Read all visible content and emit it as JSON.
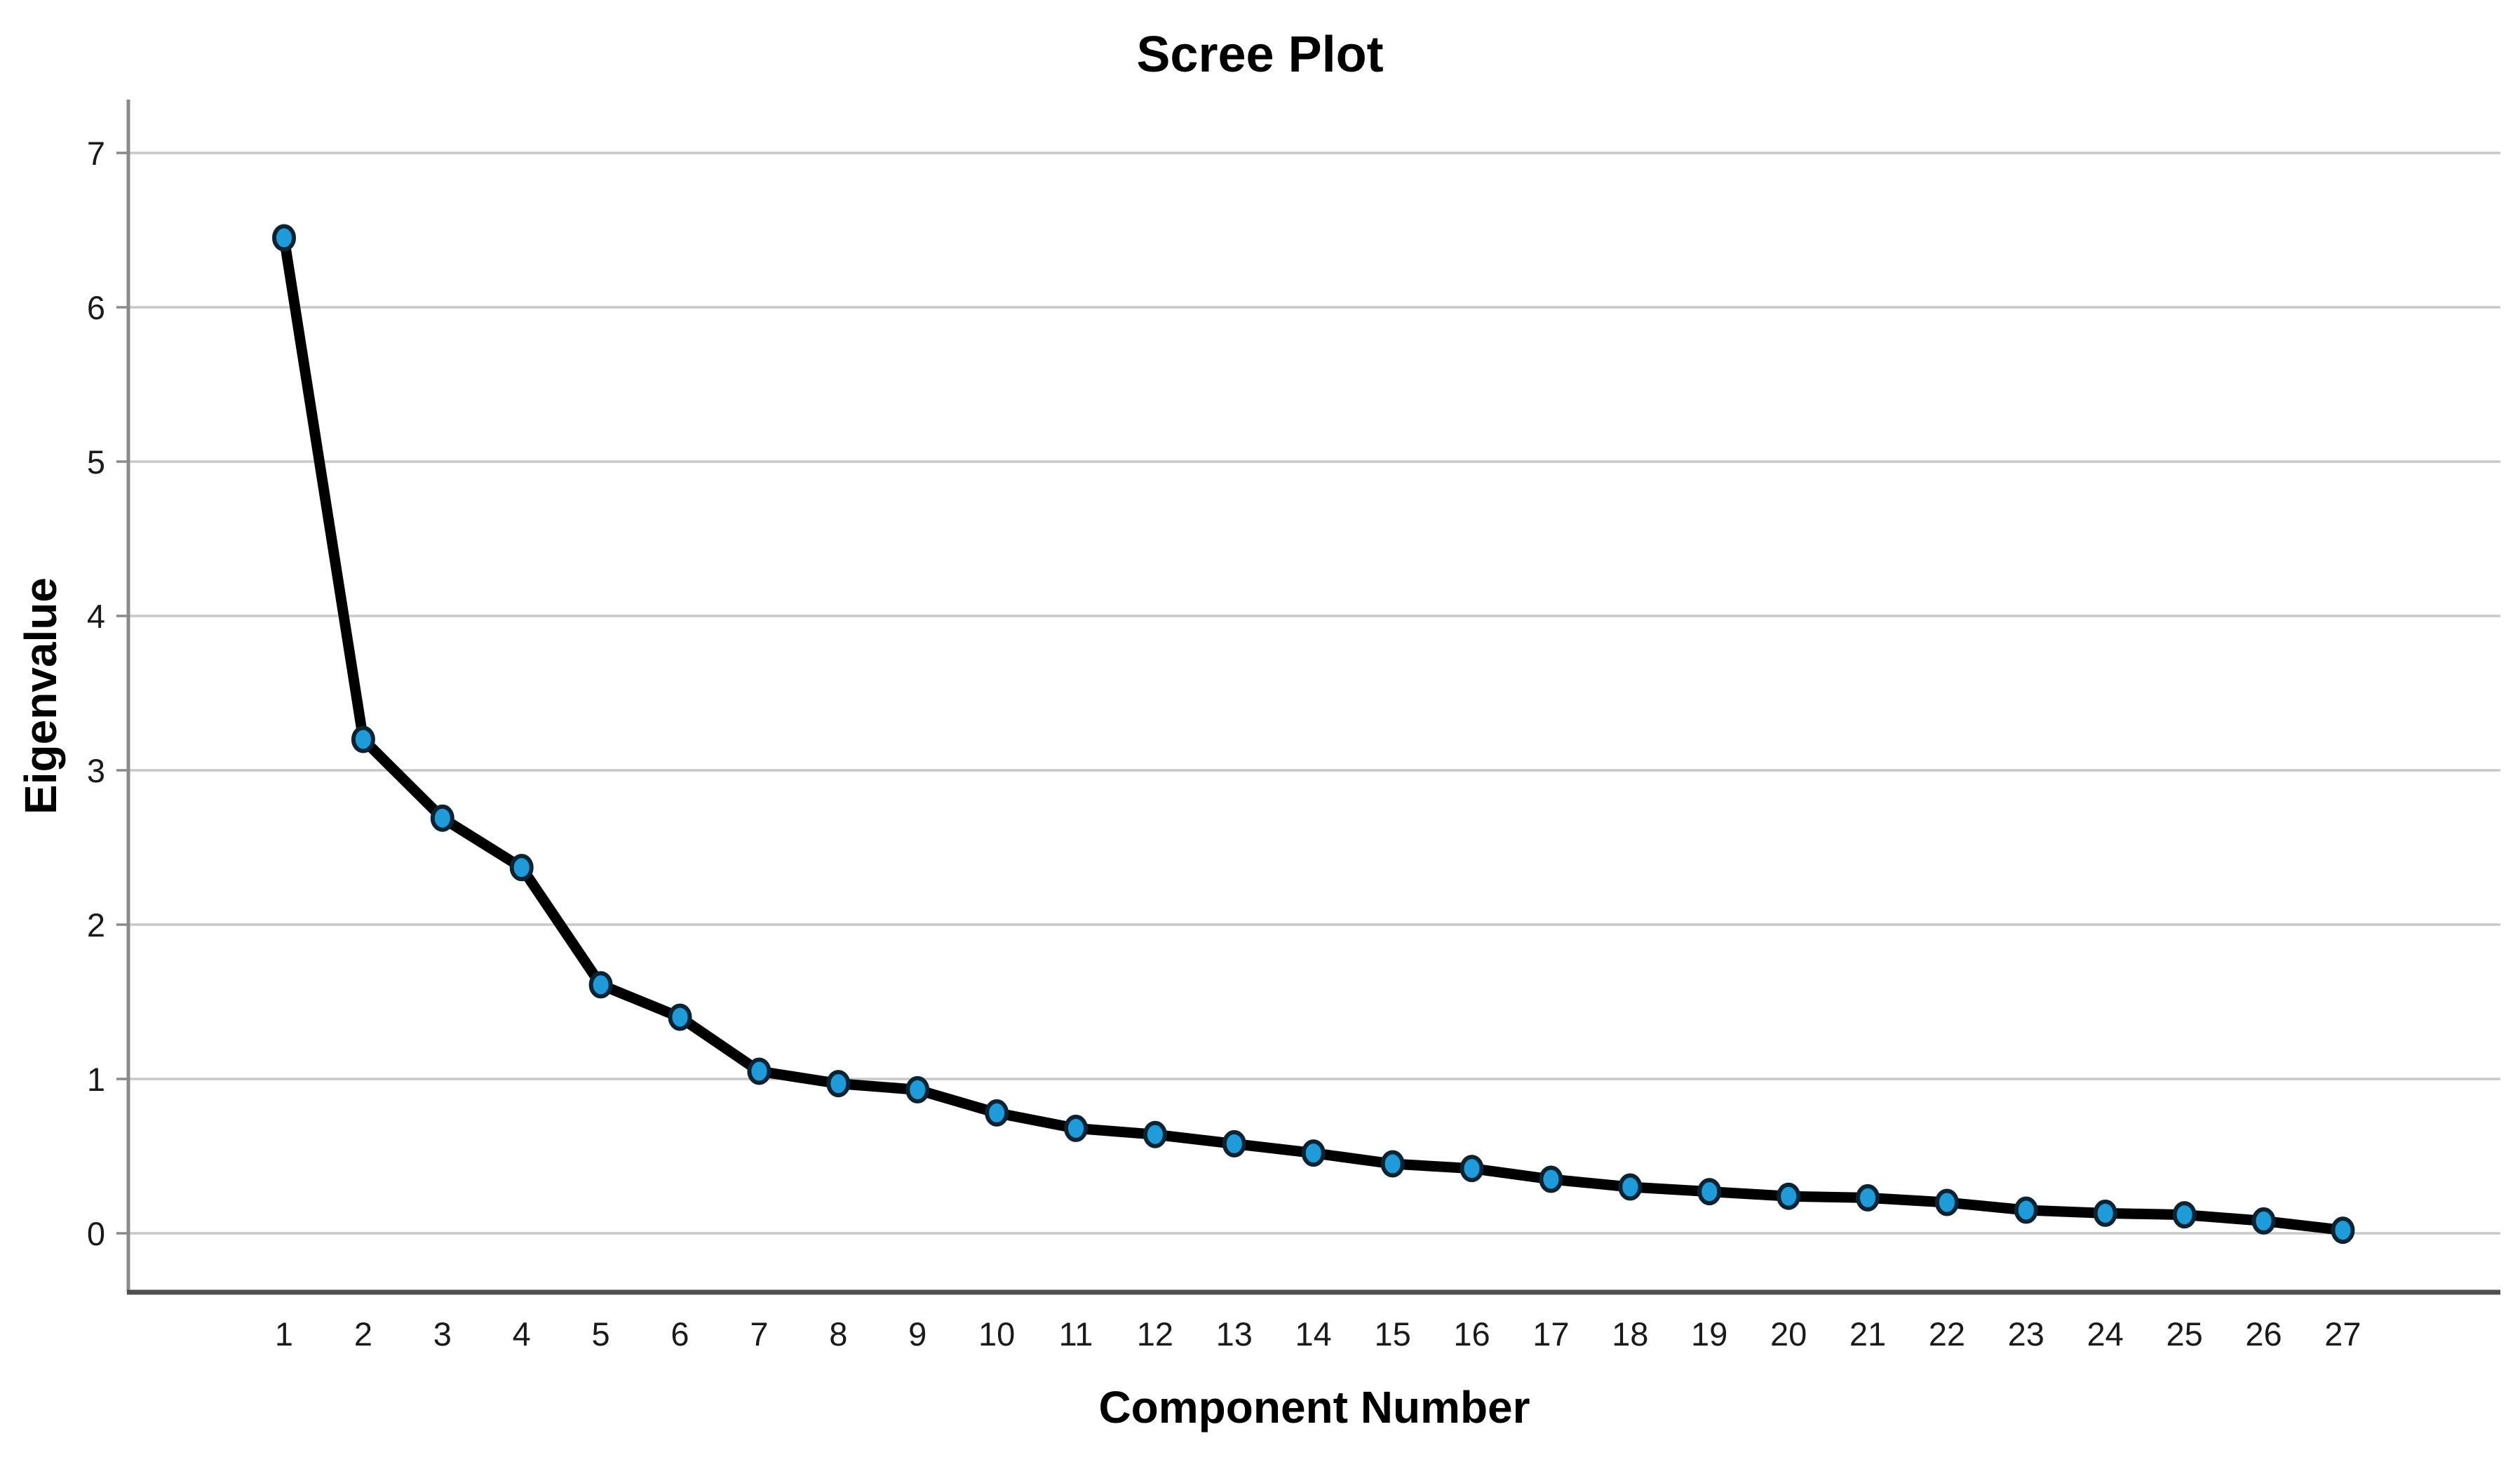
{
  "chart_data": {
    "type": "line",
    "title": "Scree Plot",
    "xlabel": "Component Number",
    "ylabel": "Eigenvalue",
    "series_name": "Eigenvalue",
    "categories": [
      1,
      2,
      3,
      4,
      5,
      6,
      7,
      8,
      9,
      10,
      11,
      12,
      13,
      14,
      15,
      16,
      17,
      18,
      19,
      20,
      21,
      22,
      23,
      24,
      25,
      26,
      27
    ],
    "values": [
      6.45,
      3.2,
      2.69,
      2.37,
      1.61,
      1.4,
      1.05,
      0.97,
      0.93,
      0.78,
      0.68,
      0.64,
      0.58,
      0.52,
      0.45,
      0.42,
      0.35,
      0.3,
      0.27,
      0.24,
      0.23,
      0.2,
      0.15,
      0.13,
      0.12,
      0.08,
      0.02
    ],
    "yticks": [
      0,
      1,
      2,
      3,
      4,
      5,
      6,
      7
    ],
    "ylim": [
      -0.38,
      7.35
    ],
    "grid": "horizontal-only",
    "legend": "none",
    "colors": {
      "background": "#FFFFFF",
      "line": "#000000",
      "marker_fill": "#1E9BD8",
      "marker_stroke": "#0A2433",
      "gridline": "#C9C9C9",
      "y_axis": "#8A8A8A",
      "x_axis": "#4F4F4F",
      "tick_text": "#1A1A1A",
      "title_text": "#000000"
    }
  }
}
